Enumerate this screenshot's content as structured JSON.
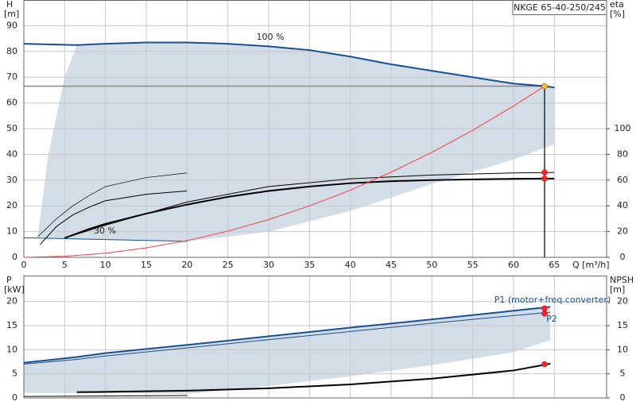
{
  "chart_data": [
    {
      "type": "line",
      "title": "NKGE 65-40-250/245",
      "ylabel": "H",
      "yunit": "[m]",
      "y2label": "eta",
      "y2unit": "[%]",
      "xlabel": "Q [m³/h]",
      "xlim": [
        0,
        71.4
      ],
      "xticks": [
        0,
        5,
        10,
        15,
        20,
        25,
        30,
        35,
        40,
        45,
        50,
        55,
        60,
        65
      ],
      "ylim": [
        0,
        100
      ],
      "yticks": [
        0,
        10,
        20,
        30,
        40,
        50,
        60,
        70,
        80,
        90
      ],
      "y2lim": [
        0,
        200
      ],
      "y2ticks": [
        0,
        20,
        40,
        60,
        80,
        100
      ],
      "grid": true,
      "duty_lines": true,
      "range": {
        "color": "#d3dde8",
        "x": [
          1.7,
          3,
          5,
          6.5,
          10,
          20,
          30,
          40,
          50,
          60,
          65
        ],
        "upper": [
          8,
          40,
          70,
          82.5,
          83,
          83.5,
          82,
          78,
          72.5,
          67.5,
          66
        ],
        "lower": [
          8,
          7.5,
          7.3,
          7.2,
          7,
          6.2,
          10,
          18,
          28.5,
          38,
          44
        ]
      },
      "series": [
        {
          "name": "100 %",
          "color": "#1a4f8f",
          "width": 2,
          "x": [
            0,
            6.5,
            10,
            15,
            20,
            25,
            30,
            35,
            40,
            45,
            50,
            55,
            60,
            63.8,
            65
          ],
          "values": [
            83,
            82.5,
            83,
            83.5,
            83.5,
            83,
            82,
            80.5,
            78,
            75,
            72.5,
            70,
            67.5,
            66.5,
            66
          ]
        },
        {
          "name": "30 %",
          "color": "#1a4f8f",
          "width": 1,
          "x": [
            0,
            20
          ],
          "values": [
            7.6,
            6.2
          ]
        },
        {
          "color": "#000000",
          "width": 2,
          "x": [
            5,
            8,
            10,
            15,
            20,
            25,
            30,
            35,
            40,
            45,
            50,
            55,
            60,
            63.8,
            65
          ],
          "values": [
            7.5,
            11,
            13,
            17,
            20.5,
            23.5,
            25.8,
            27.5,
            28.8,
            29.6,
            30,
            30.3,
            30.5,
            30.6,
            30.6
          ]
        },
        {
          "color": "#000000",
          "width": 1,
          "x": [
            5,
            10,
            20,
            30,
            40,
            50,
            60,
            65
          ],
          "values": [
            7.5,
            12.5,
            21.5,
            27.5,
            30.5,
            32,
            32.8,
            33
          ]
        },
        {
          "color": "#000000",
          "width": 1,
          "x": [
            2,
            4,
            6,
            8,
            10,
            15,
            20
          ],
          "values": [
            5,
            12,
            16.5,
            19.5,
            22,
            24.5,
            25.8
          ]
        },
        {
          "color": "#000000",
          "width": 0.7,
          "x": [
            1.7,
            4,
            6,
            8,
            10,
            15,
            20
          ],
          "values": [
            8,
            15,
            20,
            24,
            27.5,
            31,
            32.8
          ]
        },
        {
          "color": "#ff3b3b",
          "width": 1,
          "x": [
            0,
            5,
            10,
            15,
            20,
            25,
            30,
            35,
            40,
            45,
            50,
            55,
            60,
            63.8
          ],
          "values": [
            0,
            0.4,
            1.6,
            3.7,
            6.5,
            10.2,
            14.7,
            20,
            26.1,
            33.1,
            40.8,
            49.4,
            58.8,
            66.5
          ]
        }
      ],
      "markers": {
        "x": [
          63.8,
          63.8,
          63.8
        ],
        "values": [
          66.5,
          33,
          30.6
        ],
        "colors": [
          "#f5c518",
          "#ff2020",
          "#ff2020"
        ]
      }
    },
    {
      "type": "line",
      "ylabel": "P",
      "yunit": "[kW]",
      "y2label": "NPSH",
      "y2unit": "[m]",
      "xlim": [
        0,
        71.4
      ],
      "xticks": [
        0,
        5,
        10,
        15,
        20,
        25,
        30,
        35,
        40,
        45,
        50,
        55,
        60,
        65
      ],
      "ylim": [
        0,
        25.4
      ],
      "yticks": [
        0,
        5,
        10,
        15,
        20
      ],
      "y2lim": [
        0,
        25.4
      ],
      "y2ticks": [
        0,
        5,
        10,
        15,
        20
      ],
      "grid": true,
      "range": {
        "color": "#d3dde8",
        "x": [
          0,
          6.5,
          10,
          20,
          30,
          40,
          50,
          60,
          64.5
        ],
        "upper": [
          7.3,
          8.5,
          9.3,
          11,
          12.8,
          14.6,
          16.3,
          18.1,
          18.9
        ],
        "lower": [
          1,
          1,
          1,
          0.8,
          2.5,
          4.5,
          6.8,
          9.5,
          12
        ]
      },
      "series": [
        {
          "name": "P1 (motor+freq.converter)",
          "color": "#1a4f8f",
          "width": 2,
          "x": [
            0,
            6.5,
            10,
            20,
            30,
            40,
            50,
            60,
            64.5
          ],
          "values": [
            7.3,
            8.5,
            9.3,
            11,
            12.8,
            14.6,
            16.3,
            18.1,
            18.9
          ]
        },
        {
          "name": "P2",
          "color": "#1a4f8f",
          "width": 1,
          "x": [
            0,
            6.5,
            10,
            20,
            30,
            40,
            50,
            60,
            64.5
          ],
          "values": [
            7,
            8,
            8.7,
            10.4,
            12.1,
            13.8,
            15.5,
            17.1,
            17.8
          ]
        },
        {
          "color": "#000000",
          "width": 2,
          "axis": "y2",
          "x": [
            6.5,
            10,
            20,
            30,
            40,
            50,
            60,
            64.5
          ],
          "values": [
            1.2,
            1.25,
            1.5,
            2,
            2.8,
            4,
            5.7,
            7.1
          ]
        },
        {
          "color": "#000000",
          "width": 1,
          "axis": "y2",
          "x": [
            0,
            20
          ],
          "values": [
            0.3,
            0.5
          ]
        }
      ],
      "markers": {
        "x": [
          63.8,
          63.8,
          63.8
        ],
        "values": [
          18.6,
          17.5,
          7
        ],
        "colors": [
          "#ff2020",
          "#ff2020",
          "#ff2020"
        ]
      }
    }
  ]
}
